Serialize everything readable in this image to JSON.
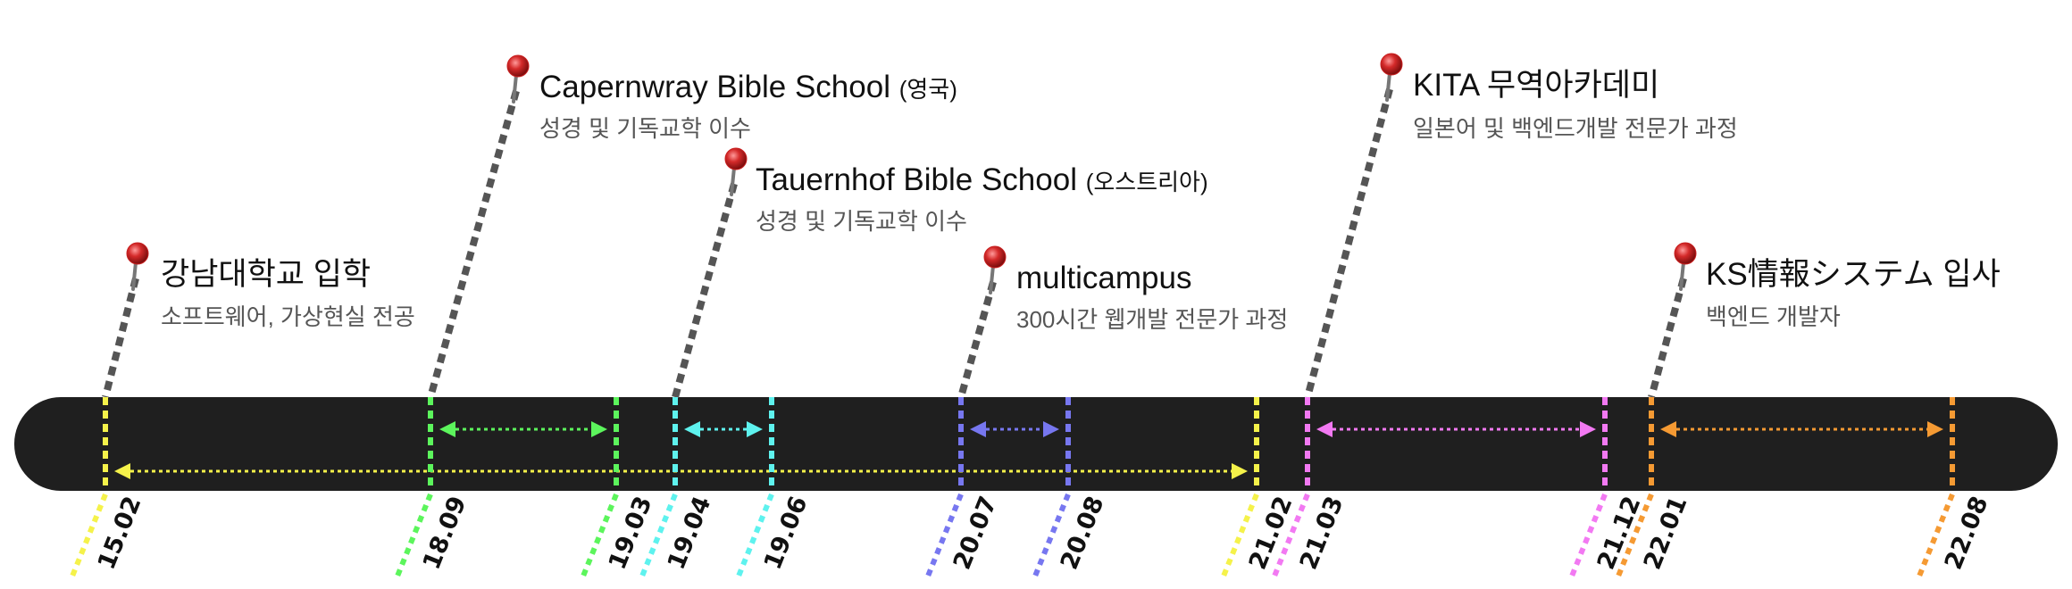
{
  "events": [
    {
      "title": "강남대학교 입학",
      "suffix": "",
      "subtitle": "소프트웨어, 가상현실 전공",
      "icon": "pin-icon"
    },
    {
      "title": "Capernwray Bible School",
      "suffix": "(영국)",
      "subtitle": "성경 및 기독교학 이수",
      "icon": "pin-icon"
    },
    {
      "title": "Tauernhof Bible School",
      "suffix": "(오스트리아)",
      "subtitle": "성경 및 기독교학 이수",
      "icon": "pin-icon"
    },
    {
      "title": "multicampus",
      "suffix": "",
      "subtitle": "300시간 웹개발 전문가 과정",
      "icon": "pin-icon"
    },
    {
      "title": "KITA 무역아카데미",
      "suffix": "",
      "subtitle": "일본어 및 백엔드개발 전문가 과정",
      "icon": "pin-icon"
    },
    {
      "title": "KS情報システム 입사",
      "suffix": "",
      "subtitle": "백엔드 개발자",
      "icon": "pin-icon"
    }
  ],
  "periods": [
    {
      "start": "15.02",
      "end": "21.02",
      "color": "#f5f24a"
    },
    {
      "start": "18.09",
      "end": "19.03",
      "color": "#5cf55c"
    },
    {
      "start": "19.04",
      "end": "19.06",
      "color": "#5ef2ee"
    },
    {
      "start": "20.07",
      "end": "20.08",
      "color": "#7777f0"
    },
    {
      "start": "21.03",
      "end": "21.12",
      "color": "#f279f2"
    },
    {
      "start": "22.01",
      "end": "22.08",
      "color": "#f59a33"
    }
  ],
  "colors": {
    "timeline_bar": "#1f1f1f",
    "leader_line": "#555555",
    "pin_head": "#c81e1e",
    "pin_needle": "#777777"
  }
}
